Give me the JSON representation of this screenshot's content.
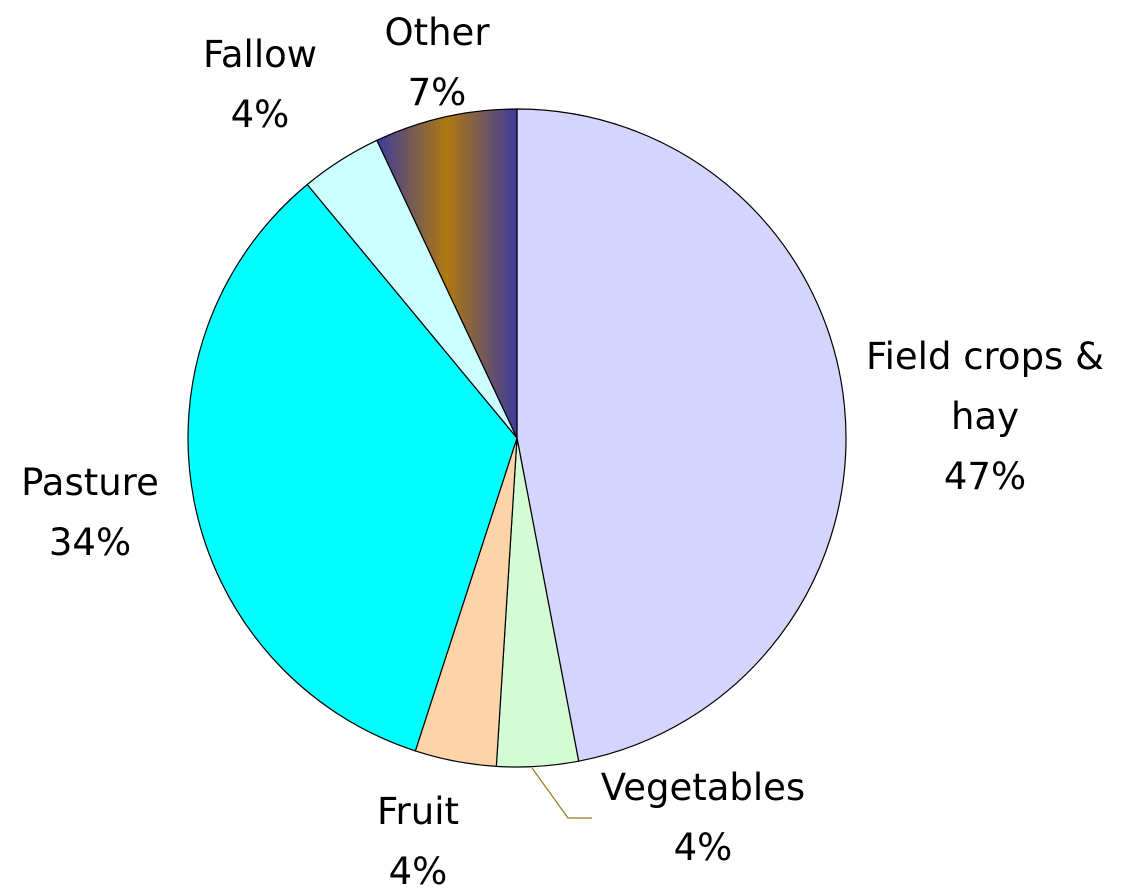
{
  "chart_data": {
    "type": "pie",
    "categories": [
      "Field crops & hay",
      "Vegetables",
      "Fruit",
      "Pasture",
      "Fallow",
      "Other"
    ],
    "values": [
      47,
      4,
      4,
      34,
      4,
      7
    ],
    "value_labels": [
      "47%",
      "4%",
      "4%",
      "34%",
      "4%",
      "7%"
    ],
    "colors": [
      "#d4d4fc",
      "#d4fcd4",
      "#fcd4a8",
      "#00ffff",
      "#ccffff",
      "#b07810"
    ]
  }
}
